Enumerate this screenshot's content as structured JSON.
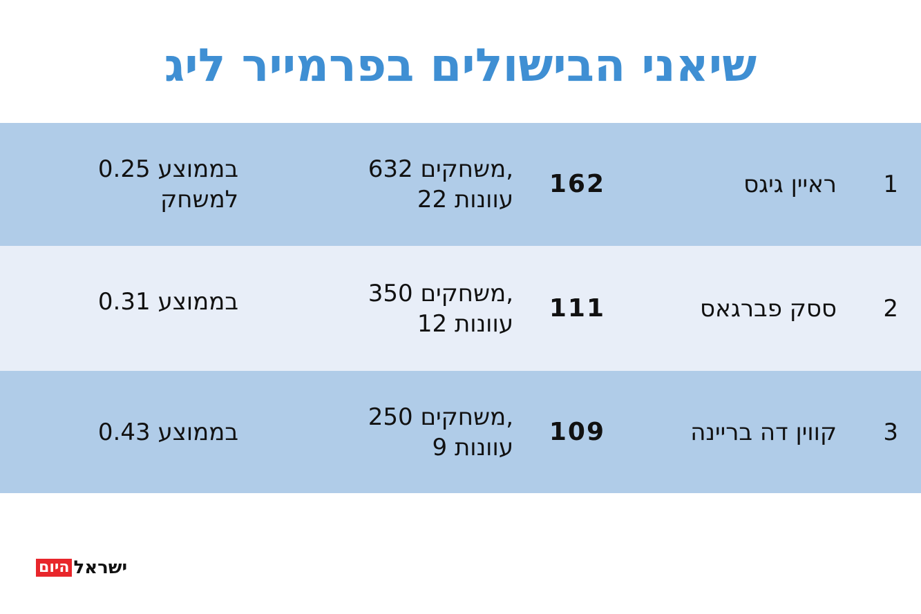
{
  "title": "שיאני הבישולים בפרמייר ליג",
  "colors": {
    "title": "#3f8fd3",
    "row_dark": "#b0cce8",
    "row_light": "#e8eef8",
    "logo_red": "#e8262b"
  },
  "rows": [
    {
      "rank": "1",
      "name": "ראיין גיגס",
      "value": "162",
      "games_line1": "632 משחקים,",
      "games_line2": "22 עוונות",
      "avg_line1": "0.25 בממוצע",
      "avg_line2": "למשחק"
    },
    {
      "rank": "2",
      "name": "ססק פברגאס",
      "value": "111",
      "games_line1": "350 משחקים,",
      "games_line2": "12 עוונות",
      "avg_line1": "0.31 בממוצע",
      "avg_line2": ""
    },
    {
      "rank": "3",
      "name": "קווין דה בריינה",
      "value": "109",
      "games_line1": "250 משחקים,",
      "games_line2": "9 עוונות",
      "avg_line1": "0.43 בממוצע",
      "avg_line2": ""
    }
  ],
  "chart_data": {
    "type": "table",
    "title": "שיאני הבישולים בפרמייר ליג",
    "rows": [
      [
        "1",
        "ראיין גיגס",
        162,
        "632 משחקים, 22 עוונות",
        "0.25 בממוצע למשחק"
      ],
      [
        "2",
        "ססק פברגאס",
        111,
        "350 משחקים, 12 עוונות",
        "0.31 בממוצע"
      ],
      [
        "3",
        "קווין דה בריינה",
        109,
        "250 משחקים, 9 עוונות",
        "0.43 בממוצע"
      ]
    ]
  },
  "logo": {
    "red_part": "היום",
    "black_part": "ישראל"
  }
}
